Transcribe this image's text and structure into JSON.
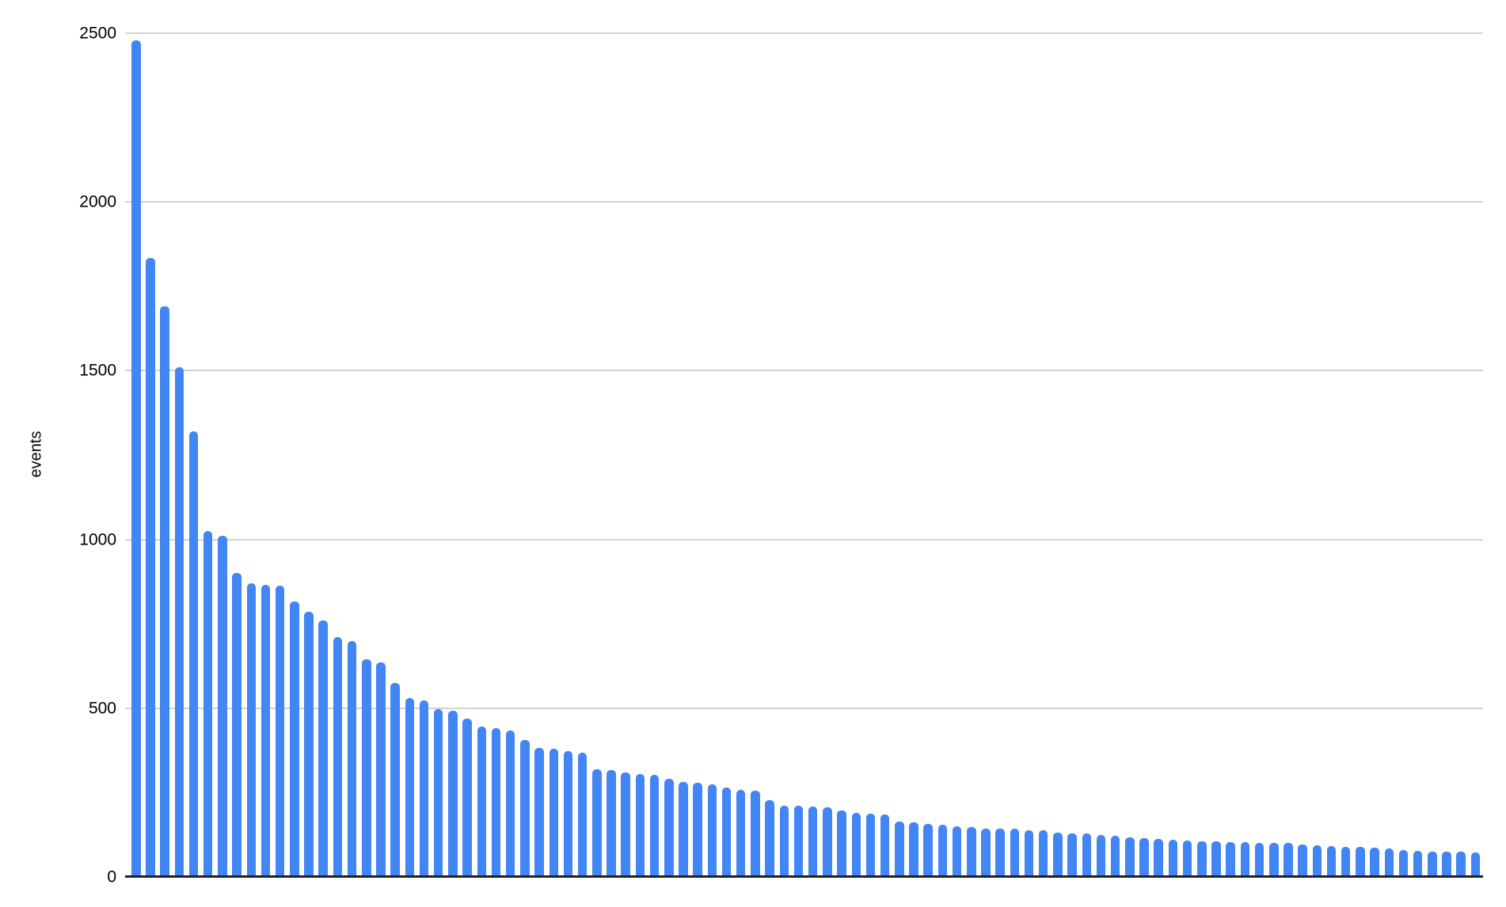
{
  "chart_data": {
    "type": "bar",
    "title": "",
    "xlabel": "",
    "ylabel": "events",
    "ylim": [
      0,
      2500
    ],
    "y_ticks": [
      0,
      500,
      1000,
      1500,
      2000,
      2500
    ],
    "y_tick_labels": [
      "0",
      "500",
      "1000",
      "1500",
      "2000",
      "2500"
    ],
    "grid": true,
    "legend": "none",
    "x_tick_labels_visible": false,
    "bar_color": "#4285F4",
    "gridline_color": "#d2d2d2",
    "baseline_color": "#212121",
    "text_color": "#000000",
    "values": [
      2480,
      1835,
      1690,
      1510,
      1320,
      1025,
      1010,
      900,
      870,
      866,
      863,
      815,
      785,
      760,
      710,
      700,
      645,
      635,
      575,
      530,
      524,
      498,
      492,
      470,
      446,
      441,
      435,
      405,
      382,
      380,
      372,
      368,
      320,
      316,
      310,
      305,
      302,
      292,
      282,
      280,
      275,
      265,
      258,
      255,
      228,
      212,
      210,
      208,
      206,
      196,
      190,
      187,
      185,
      165,
      163,
      156,
      154,
      149,
      147,
      144,
      143,
      142,
      139,
      138,
      131,
      130,
      128,
      125,
      122,
      118,
      115,
      113,
      110,
      108,
      106,
      105,
      104,
      103,
      102,
      101,
      100,
      96,
      95,
      92,
      90,
      88,
      86,
      84,
      80,
      78,
      76,
      75,
      74,
      73
    ]
  }
}
